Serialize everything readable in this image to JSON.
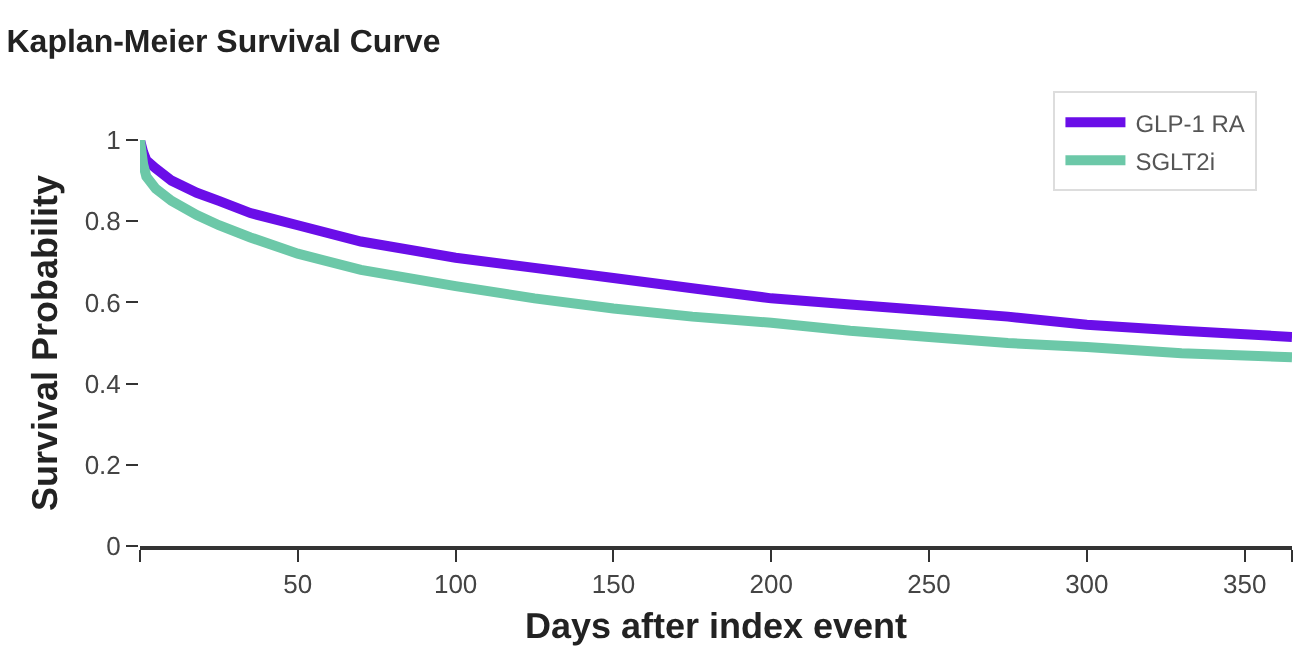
{
  "chart_data": {
    "type": "line",
    "title": "Kaplan-Meier Survival Curve",
    "xlabel": "Days after index event",
    "ylabel": "Survival Probability",
    "xlim": [
      0,
      365
    ],
    "ylim": [
      0,
      1
    ],
    "xticks": [
      {
        "value": 0,
        "label": null
      },
      50,
      100,
      150,
      200,
      250,
      300,
      350,
      {
        "value": 365,
        "label": null
      }
    ],
    "yticks": [
      0,
      0.2,
      0.4,
      0.6,
      0.8,
      1
    ],
    "grid": false,
    "legend": "top right",
    "line_style": "solid",
    "marker": "none",
    "series": [
      {
        "name": "GLP-1 RA",
        "color": "#6a0ee8",
        "x": [
          0,
          1,
          2,
          5,
          10,
          18,
          25,
          35,
          50,
          70,
          100,
          125,
          150,
          175,
          200,
          225,
          250,
          275,
          300,
          330,
          365
        ],
        "values": [
          1,
          0.97,
          0.95,
          0.93,
          0.9,
          0.87,
          0.85,
          0.82,
          0.79,
          0.75,
          0.71,
          0.685,
          0.66,
          0.635,
          0.61,
          0.595,
          0.58,
          0.565,
          0.545,
          0.53,
          0.515
        ]
      },
      {
        "name": "SGLT2i",
        "color": "#6cc8a8",
        "x": [
          0,
          1,
          2,
          5,
          10,
          18,
          25,
          35,
          50,
          70,
          100,
          125,
          150,
          175,
          200,
          225,
          250,
          275,
          300,
          330,
          365
        ],
        "values": [
          1,
          0.94,
          0.91,
          0.88,
          0.85,
          0.815,
          0.79,
          0.76,
          0.72,
          0.68,
          0.64,
          0.61,
          0.585,
          0.565,
          0.55,
          0.53,
          0.515,
          0.5,
          0.49,
          0.475,
          0.465
        ]
      }
    ]
  }
}
